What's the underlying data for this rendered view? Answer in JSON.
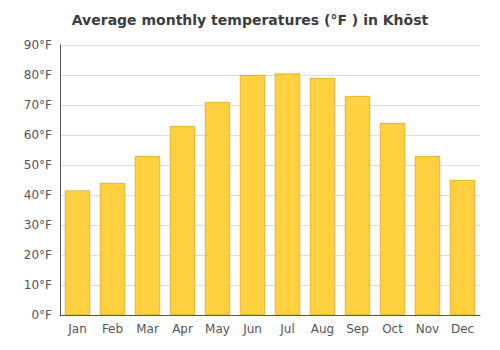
{
  "chart_data": {
    "type": "bar",
    "title": "Average monthly temperatures (°F ) in Khōst",
    "categories": [
      "Jan",
      "Feb",
      "Mar",
      "Apr",
      "May",
      "Jun",
      "Jul",
      "Aug",
      "Sep",
      "Oct",
      "Nov",
      "Dec"
    ],
    "values": [
      41.5,
      44.0,
      53.0,
      63.0,
      71.0,
      80.0,
      80.5,
      79.0,
      73.0,
      64.0,
      53.0,
      45.0
    ],
    "color": "#FFD040",
    "ylim": [
      0,
      90
    ],
    "yticks": [
      {
        "value": 0,
        "label": "0°F"
      },
      {
        "value": 10,
        "label": "10°F"
      },
      {
        "value": 20,
        "label": "20°F"
      },
      {
        "value": 30,
        "label": "30°F"
      },
      {
        "value": 40,
        "label": "40°F"
      },
      {
        "value": 50,
        "label": "50°F"
      },
      {
        "value": 60,
        "label": "60°F"
      },
      {
        "value": 70,
        "label": "70°F"
      },
      {
        "value": 80,
        "label": "80°F"
      },
      {
        "value": 90,
        "label": "90°F"
      }
    ],
    "grid": true
  }
}
